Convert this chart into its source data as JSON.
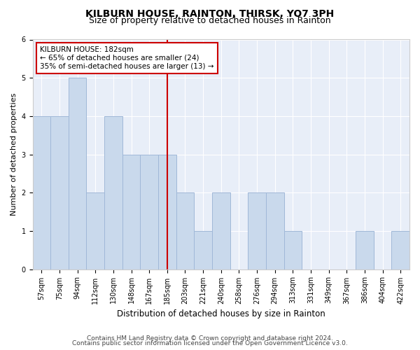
{
  "title": "KILBURN HOUSE, RAINTON, THIRSK, YO7 3PH",
  "subtitle": "Size of property relative to detached houses in Rainton",
  "xlabel": "Distribution of detached houses by size in Rainton",
  "ylabel": "Number of detached properties",
  "categories": [
    "57sqm",
    "75sqm",
    "94sqm",
    "112sqm",
    "130sqm",
    "148sqm",
    "167sqm",
    "185sqm",
    "203sqm",
    "221sqm",
    "240sqm",
    "258sqm",
    "276sqm",
    "294sqm",
    "313sqm",
    "331sqm",
    "349sqm",
    "367sqm",
    "386sqm",
    "404sqm",
    "422sqm"
  ],
  "values": [
    4,
    4,
    5,
    2,
    4,
    3,
    3,
    3,
    2,
    1,
    2,
    0,
    2,
    2,
    1,
    0,
    0,
    0,
    1,
    0,
    1
  ],
  "bar_color": "#c9d9ec",
  "bar_edgecolor": "#a0b8d8",
  "vline_x_index": 7,
  "vline_color": "#cc0000",
  "annotation_text": "KILBURN HOUSE: 182sqm\n← 65% of detached houses are smaller (24)\n35% of semi-detached houses are larger (13) →",
  "annotation_box_edgecolor": "#cc0000",
  "annotation_box_facecolor": "#ffffff",
  "ylim": [
    0,
    6
  ],
  "yticks": [
    0,
    1,
    2,
    3,
    4,
    5,
    6
  ],
  "footer_line1": "Contains HM Land Registry data © Crown copyright and database right 2024.",
  "footer_line2": "Contains public sector information licensed under the Open Government Licence v3.0.",
  "background_color": "#ffffff",
  "plot_background": "#e8eef8",
  "title_fontsize": 10,
  "subtitle_fontsize": 9,
  "xlabel_fontsize": 8.5,
  "ylabel_fontsize": 8,
  "tick_fontsize": 7,
  "footer_fontsize": 6.5,
  "annotation_fontsize": 7.5
}
